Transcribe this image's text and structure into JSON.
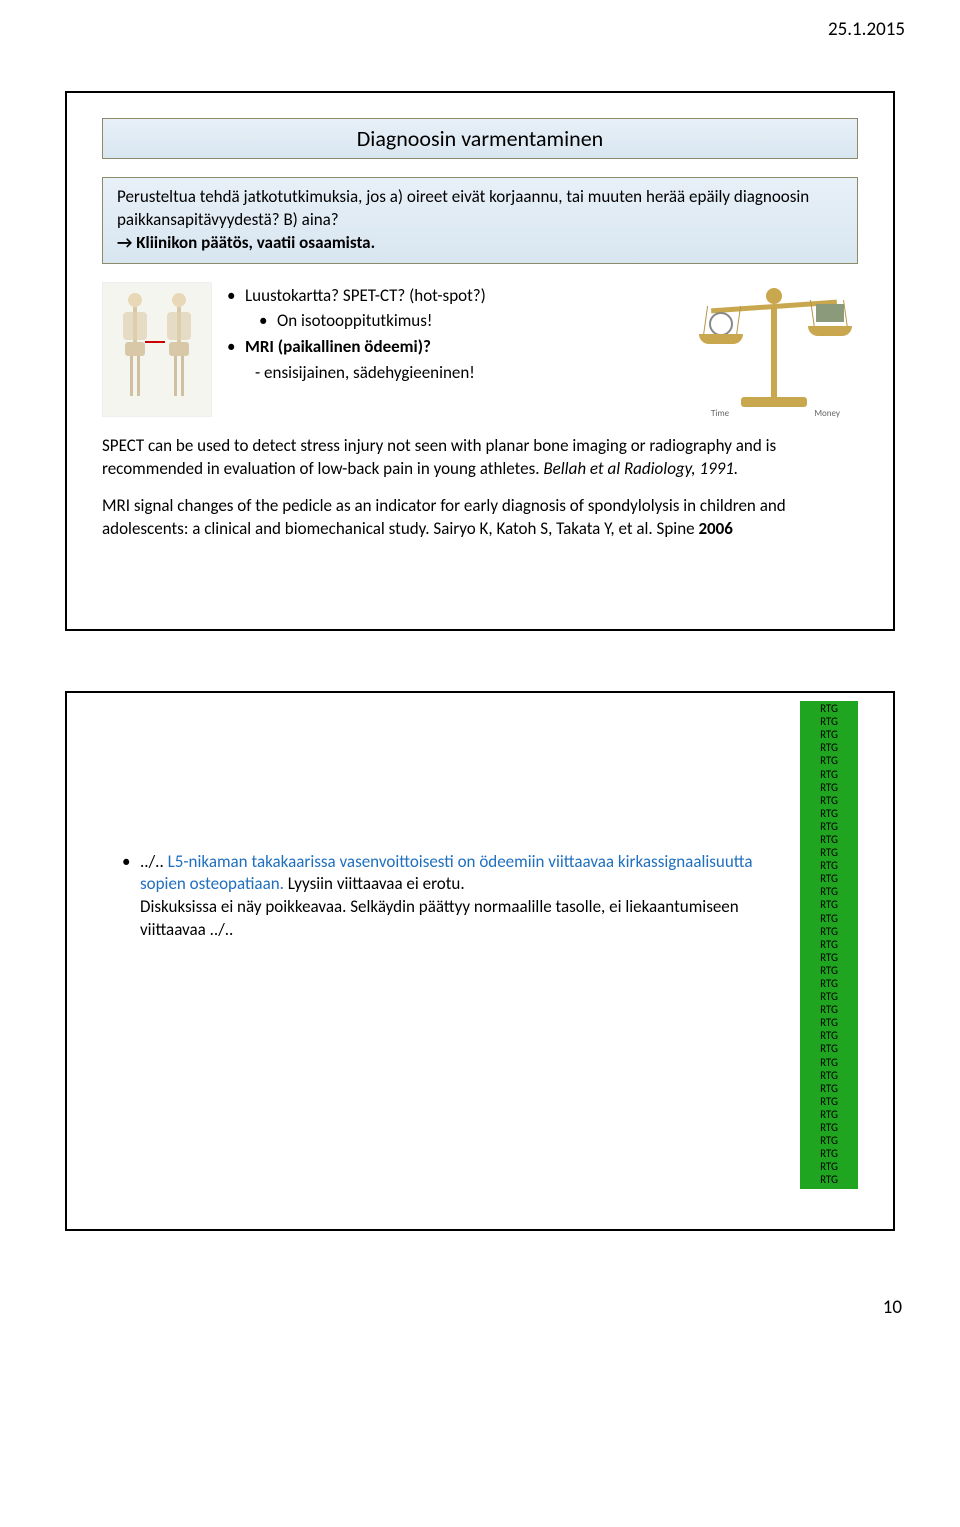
{
  "header": {
    "date": "25.1.2015"
  },
  "slide1": {
    "title": "Diagnoosin varmentaminen",
    "intro_line1": "Perusteltua tehdä jatkotutkimuksia, jos a) oireet eivät korjaannu, tai muuten herää epäily diagnoosin paikkansapitävyydestä? B) aina?",
    "intro_line2": "→ Kliinikon päätös, vaatii osaamista.",
    "bullets": {
      "b1": "Luustokartta? SPET-CT? (hot-spot?)",
      "b1_sub": "On isotooppitutkimus!",
      "b2": "MRI (paikallinen ödeemi)?",
      "b2_note": "- ensisijainen, sädehygieeninen!"
    },
    "scale": {
      "left_label": "Time",
      "right_label": "Money"
    },
    "para1_text": "SPECT can be used to detect stress injury not seen with planar bone imaging or radiography and is recommended in evaluation of low-back pain in young athletes. ",
    "para1_ref": "Bellah et al Radiology, 1991.",
    "para2_text": "MRI signal changes of the pedicle as an indicator for early diagnosis of spondylolysis in children and adolescents: a clinical and biomechanical study. Sairyo K, Katoh S, Takata Y, et al. ",
    "para2_ref": "Spine 2006"
  },
  "slide2": {
    "lead": "../.. ",
    "blue_text": "L5-nikaman takakaarissa vasenvoittoisesti on ödeemiin viittaavaa kirkassignaalisuutta sopien osteopatiaan.",
    "after_blue": " Lyysiin viittaavaa ei erotu.",
    "line3": "Diskuksissa ei näy poikkeavaa. Selkäydin päättyy normaalille tasolle, ei liekaantumiseen viittaavaa ../..",
    "rtg_label": "RTG",
    "rtg_count": 37
  },
  "footer": {
    "page_number": "10"
  },
  "colors": {
    "box_border": "#8b8b6b",
    "box_bg_top": "#e8f0f8",
    "box_bg_bottom": "#d8e6f0",
    "blue_text": "#1f6fbf",
    "green_bg": "#1fa51f",
    "scale_gold": "#c9a74e"
  }
}
